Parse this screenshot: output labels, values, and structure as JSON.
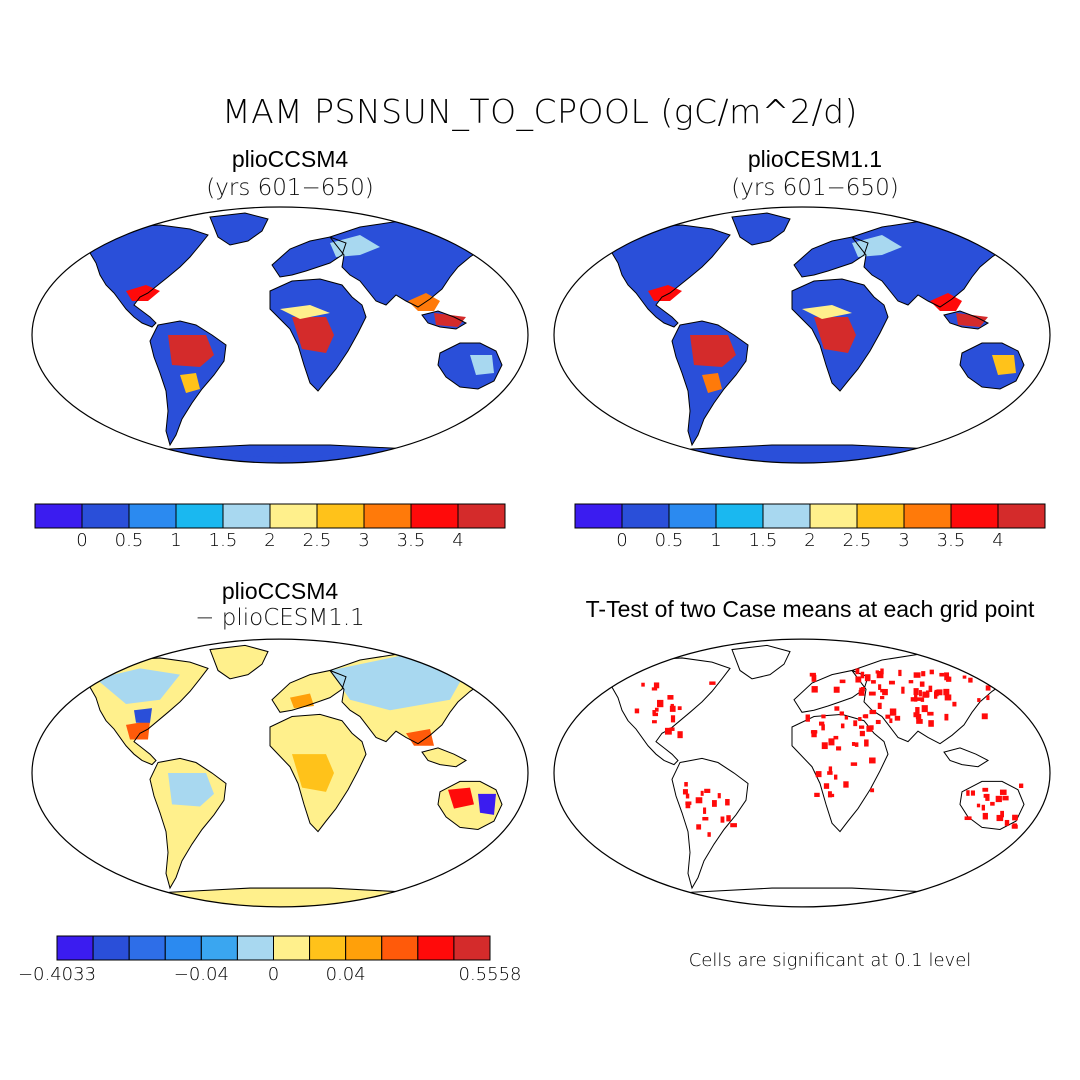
{
  "figure": {
    "title": "MAM PSNSUN_TO_CPOOL (gC/m^2/d)"
  },
  "panels": [
    {
      "id": "case1",
      "title": "plioCCSM4",
      "subtitle": "(yrs 601−650)"
    },
    {
      "id": "case2",
      "title": "plioCESM1.1",
      "subtitle": "(yrs 601−650)"
    },
    {
      "id": "diff",
      "title": "plioCCSM4",
      "subtitle": "− plioCESM1.1"
    },
    {
      "id": "ttest",
      "title": "T-Test of two Case means at each grid point",
      "subtitle": ""
    }
  ],
  "colorbars": {
    "main": {
      "colors": [
        "#3b1cf0",
        "#2a4fd9",
        "#2b8af0",
        "#1ab8f0",
        "#a8d8f0",
        "#fff08c",
        "#ffc21a",
        "#ff7a0a",
        "#ff0a0a",
        "#d42b2b"
      ],
      "labels": [
        "0",
        "0.5",
        "1",
        "1.5",
        "2",
        "2.5",
        "3",
        "3.5",
        "4"
      ]
    },
    "diff": {
      "colors": [
        "#3b1cf0",
        "#2a4fd9",
        "#2e6ee8",
        "#2b8af0",
        "#3aa6f0",
        "#a8d8f0",
        "#fff08c",
        "#ffc21a",
        "#ffa00a",
        "#ff5a0a",
        "#ff0a0a",
        "#d42b2b"
      ],
      "labels": [
        "−0.4033",
        "−0.04",
        "0",
        "0.04",
        "0.5558"
      ]
    }
  },
  "note": "Cells are significant at 0.1 level"
}
